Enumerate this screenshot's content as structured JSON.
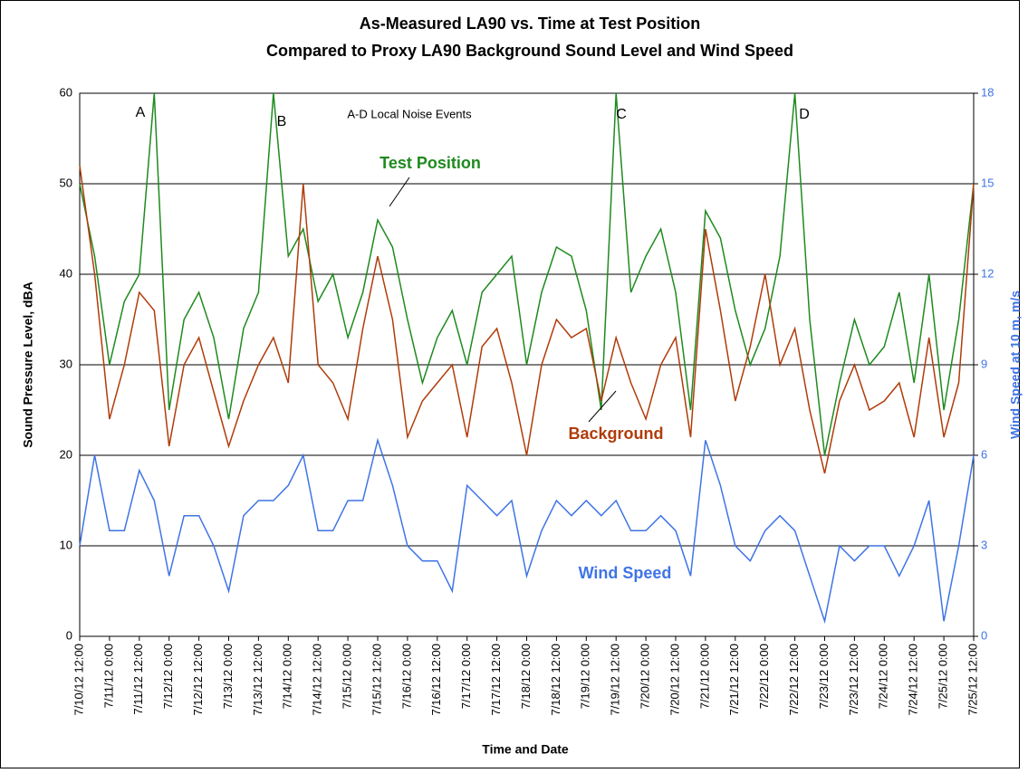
{
  "chart_data": {
    "type": "line",
    "title": [
      "As-Measured LA90 vs. Time at Test Position",
      "Compared to Proxy LA90 Background Sound Level and Wind Speed"
    ],
    "xlabel": "Time and Date",
    "ylabel": "Sound Pressure Level, dBA",
    "y2label": "Wind Speed at 10 m, m/s",
    "x": [
      "7/10/12 12:00",
      "7/10/12 18:00",
      "7/11/12 0:00",
      "7/11/12 6:00",
      "7/11/12 12:00",
      "7/11/12 18:00",
      "7/12/12 0:00",
      "7/12/12 6:00",
      "7/12/12 12:00",
      "7/12/12 18:00",
      "7/13/12 0:00",
      "7/13/12 6:00",
      "7/13/12 12:00",
      "7/13/12 18:00",
      "7/14/12 0:00",
      "7/14/12 6:00",
      "7/14/12 12:00",
      "7/14/12 18:00",
      "7/15/12 0:00",
      "7/15/12 6:00",
      "7/15/12 12:00",
      "7/15/12 18:00",
      "7/16/12 0:00",
      "7/16/12 6:00",
      "7/16/12 12:00",
      "7/16/12 18:00",
      "7/17/12 0:00",
      "7/17/12 6:00",
      "7/17/12 12:00",
      "7/17/12 18:00",
      "7/18/12 0:00",
      "7/18/12 6:00",
      "7/18/12 12:00",
      "7/18/12 18:00",
      "7/19/12 0:00",
      "7/19/12 6:00",
      "7/19/12 12:00",
      "7/19/12 18:00",
      "7/20/12 0:00",
      "7/20/12 6:00",
      "7/20/12 12:00",
      "7/20/12 18:00",
      "7/21/12 0:00",
      "7/21/12 6:00",
      "7/21/12 12:00",
      "7/21/12 18:00",
      "7/22/12 0:00",
      "7/22/12 6:00",
      "7/22/12 12:00",
      "7/22/12 18:00",
      "7/23/12 0:00",
      "7/23/12 6:00",
      "7/23/12 12:00",
      "7/23/12 18:00",
      "7/24/12 0:00",
      "7/24/12 6:00",
      "7/24/12 12:00",
      "7/24/12 18:00",
      "7/25/12 0:00",
      "7/25/12 6:00",
      "7/25/12 12:00"
    ],
    "xticks": [
      "7/10/12 12:00",
      "7/11/12 0:00",
      "7/11/12 12:00",
      "7/12/12 0:00",
      "7/12/12 12:00",
      "7/13/12 0:00",
      "7/13/12 12:00",
      "7/14/12 0:00",
      "7/14/12 12:00",
      "7/15/12 0:00",
      "7/15/12 12:00",
      "7/16/12 0:00",
      "7/16/12 12:00",
      "7/17/12 0:00",
      "7/17/12 12:00",
      "7/18/12 0:00",
      "7/18/12 12:00",
      "7/19/12 0:00",
      "7/19/12 12:00",
      "7/20/12 0:00",
      "7/20/12 12:00",
      "7/21/12 0:00",
      "7/21/12 12:00",
      "7/22/12 0:00",
      "7/22/12 12:00",
      "7/23/12 0:00",
      "7/23/12 12:00",
      "7/24/12 0:00",
      "7/24/12 12:00",
      "7/25/12 0:00",
      "7/25/12 12:00"
    ],
    "ylim": [
      0,
      60
    ],
    "yticks": [
      0,
      10,
      20,
      30,
      40,
      50,
      60
    ],
    "y2lim": [
      0,
      18
    ],
    "y2ticks": [
      0,
      3,
      6,
      9,
      12,
      15,
      18
    ],
    "grid": true,
    "series": [
      {
        "name": "Test Position",
        "color": "#1f8a1f",
        "values": [
          50,
          42,
          30,
          37,
          40,
          60,
          25,
          35,
          38,
          33,
          24,
          34,
          38,
          60,
          42,
          45,
          37,
          40,
          33,
          38,
          46,
          43,
          35,
          28,
          33,
          36,
          30,
          38,
          40,
          42,
          30,
          38,
          43,
          42,
          36,
          25,
          60,
          38,
          42,
          45,
          38,
          25,
          47,
          44,
          36,
          30,
          34,
          42,
          60,
          35,
          20,
          28,
          35,
          30,
          32,
          38,
          28,
          40,
          25,
          35,
          50
        ]
      },
      {
        "name": "Background",
        "color": "#b03c0a",
        "values": [
          52,
          40,
          24,
          30,
          38,
          36,
          21,
          30,
          33,
          27,
          21,
          26,
          30,
          33,
          28,
          50,
          30,
          28,
          24,
          34,
          42,
          35,
          22,
          26,
          28,
          30,
          22,
          32,
          34,
          28,
          20,
          30,
          35,
          33,
          34,
          26,
          33,
          28,
          24,
          30,
          33,
          22,
          45,
          36,
          26,
          32,
          40,
          30,
          34,
          25,
          18,
          26,
          30,
          25,
          26,
          28,
          22,
          33,
          22,
          28,
          50
        ]
      },
      {
        "name": "Wind Speed",
        "color": "#3f74e6",
        "axis": "y2",
        "values": [
          3,
          6,
          3.5,
          3.5,
          5.5,
          4.5,
          2,
          4,
          4,
          3,
          1.5,
          4,
          4.5,
          4.5,
          5,
          6,
          3.5,
          3.5,
          4.5,
          4.5,
          6.5,
          5,
          3,
          2.5,
          2.5,
          1.5,
          5,
          4.5,
          4,
          4.5,
          2,
          3.5,
          4.5,
          4,
          4.5,
          4,
          4.5,
          3.5,
          3.5,
          4,
          3.5,
          2,
          6.5,
          5,
          3,
          2.5,
          3.5,
          4,
          3.5,
          2,
          0.5,
          3,
          2.5,
          3,
          3,
          2,
          3,
          4.5,
          0.5,
          3,
          6
        ]
      }
    ],
    "annotations": [
      "A",
      "B",
      "C",
      "D",
      "A-D Local Noise Events"
    ]
  }
}
